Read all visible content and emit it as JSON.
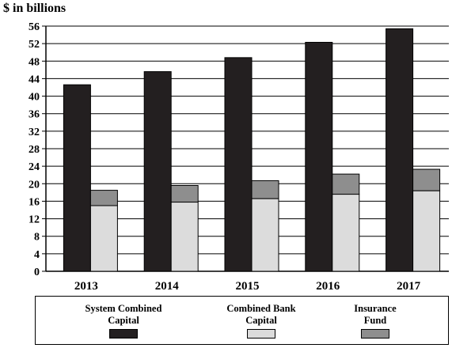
{
  "chart_data": {
    "type": "bar",
    "stacked_groups": true,
    "unit_label": "$ in billions",
    "categories": [
      "2013",
      "2014",
      "2015",
      "2016",
      "2017"
    ],
    "series": [
      {
        "name": "System Combined Capital",
        "stack": "a",
        "color": "#231f20",
        "values": [
          42.6,
          45.6,
          48.8,
          52.3,
          55.4
        ]
      },
      {
        "name": "Combined Bank Capital",
        "stack": "b",
        "color": "#dcdcdc",
        "values": [
          15.0,
          15.8,
          16.6,
          17.6,
          18.4
        ]
      },
      {
        "name": "Insurance Fund",
        "stack": "b",
        "color": "#8e8e8e",
        "values": [
          3.5,
          3.8,
          4.1,
          4.6,
          4.9
        ]
      }
    ],
    "ylim": [
      0,
      56
    ],
    "yticks": [
      0,
      4,
      8,
      12,
      16,
      20,
      24,
      28,
      32,
      36,
      40,
      44,
      48,
      52,
      56
    ],
    "grid": true,
    "legend_position": "bottom"
  },
  "legend": [
    {
      "label": "System Combined\nCapital",
      "color": "#231f20"
    },
    {
      "label": "Combined Bank\nCapital",
      "color": "#dcdcdc"
    },
    {
      "label": "Insurance\nFund",
      "color": "#8e8e8e"
    }
  ]
}
